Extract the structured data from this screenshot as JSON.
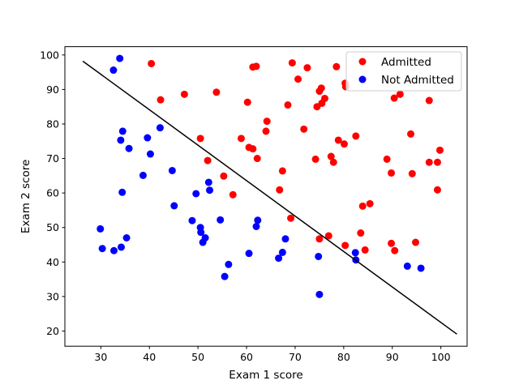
{
  "chart_data": {
    "type": "scatter",
    "title": "",
    "xlabel": "Exam 1 score",
    "ylabel": "Exam 2 score",
    "xlim": [
      22.6,
      105.4
    ],
    "ylim": [
      15.6,
      102.4
    ],
    "xticks": [
      30,
      40,
      50,
      60,
      70,
      80,
      90,
      100
    ],
    "yticks": [
      20,
      30,
      40,
      50,
      60,
      70,
      80,
      90,
      100
    ],
    "grid": false,
    "legend_position": "top-right",
    "series": [
      {
        "name": "Admitted",
        "color": "#ff0000",
        "points": [
          [
            40.4,
            97.5
          ],
          [
            62.0,
            96.7
          ],
          [
            69.4,
            97.7
          ],
          [
            72.5,
            96.3
          ],
          [
            78.5,
            96.6
          ],
          [
            61.3,
            96.5
          ],
          [
            42.3,
            87.0
          ],
          [
            47.2,
            88.6
          ],
          [
            53.8,
            89.2
          ],
          [
            60.2,
            86.3
          ],
          [
            68.5,
            85.5
          ],
          [
            70.6,
            93.0
          ],
          [
            75.0,
            89.5
          ],
          [
            75.4,
            90.4
          ],
          [
            74.5,
            85.0
          ],
          [
            75.5,
            86.0
          ],
          [
            76.1,
            87.4
          ],
          [
            80.3,
            91.8
          ],
          [
            80.4,
            90.8
          ],
          [
            90.4,
            87.5
          ],
          [
            91.6,
            88.6
          ],
          [
            97.6,
            86.8
          ],
          [
            64.2,
            80.8
          ],
          [
            64.0,
            77.9
          ],
          [
            71.8,
            78.5
          ],
          [
            50.5,
            75.8
          ],
          [
            58.9,
            75.8
          ],
          [
            60.5,
            73.2
          ],
          [
            61.3,
            72.8
          ],
          [
            62.2,
            70.0
          ],
          [
            74.2,
            69.8
          ],
          [
            77.4,
            70.6
          ],
          [
            77.9,
            68.9
          ],
          [
            78.9,
            75.3
          ],
          [
            80.1,
            74.2
          ],
          [
            82.5,
            76.5
          ],
          [
            88.9,
            69.8
          ],
          [
            89.8,
            65.8
          ],
          [
            93.8,
            77.1
          ],
          [
            94.1,
            65.6
          ],
          [
            97.6,
            68.9
          ],
          [
            99.3,
            68.9
          ],
          [
            99.8,
            72.4
          ],
          [
            99.3,
            60.9
          ],
          [
            52.0,
            69.4
          ],
          [
            55.3,
            64.9
          ],
          [
            57.2,
            59.5
          ],
          [
            66.8,
            60.9
          ],
          [
            67.4,
            66.4
          ],
          [
            69.1,
            52.7
          ],
          [
            85.4,
            56.9
          ],
          [
            83.9,
            56.2
          ],
          [
            75.0,
            46.7
          ],
          [
            76.9,
            47.6
          ],
          [
            80.3,
            44.8
          ],
          [
            83.5,
            48.4
          ],
          [
            84.4,
            43.5
          ],
          [
            89.8,
            45.4
          ],
          [
            90.5,
            43.3
          ],
          [
            94.8,
            45.7
          ]
        ]
      },
      {
        "name": "Not Admitted",
        "color": "#0000ff",
        "points": [
          [
            33.9,
            99.0
          ],
          [
            32.6,
            95.6
          ],
          [
            42.2,
            78.9
          ],
          [
            39.6,
            76.0
          ],
          [
            34.5,
            77.9
          ],
          [
            34.1,
            75.3
          ],
          [
            35.8,
            72.9
          ],
          [
            40.2,
            71.3
          ],
          [
            38.7,
            65.1
          ],
          [
            44.7,
            66.5
          ],
          [
            34.4,
            60.2
          ],
          [
            45.1,
            56.3
          ],
          [
            49.6,
            59.8
          ],
          [
            52.2,
            63.1
          ],
          [
            52.4,
            60.8
          ],
          [
            48.8,
            52.0
          ],
          [
            50.5,
            50.0
          ],
          [
            50.6,
            48.6
          ],
          [
            51.5,
            47.0
          ],
          [
            51.0,
            45.7
          ],
          [
            54.6,
            52.2
          ],
          [
            62.0,
            50.3
          ],
          [
            62.3,
            52.1
          ],
          [
            68.0,
            46.7
          ],
          [
            29.9,
            49.6
          ],
          [
            35.3,
            47.0
          ],
          [
            30.3,
            43.9
          ],
          [
            32.7,
            43.3
          ],
          [
            34.2,
            44.3
          ],
          [
            56.3,
            39.3
          ],
          [
            55.5,
            35.8
          ],
          [
            60.5,
            42.5
          ],
          [
            66.6,
            41.1
          ],
          [
            67.4,
            42.8
          ],
          [
            74.8,
            41.6
          ],
          [
            75.0,
            30.6
          ],
          [
            82.4,
            42.7
          ],
          [
            82.5,
            40.6
          ],
          [
            93.1,
            38.8
          ],
          [
            95.9,
            38.2
          ]
        ]
      }
    ],
    "boundary": {
      "name": "",
      "color": "#000000",
      "points": [
        [
          26.3,
          98.2
        ],
        [
          103.3,
          19.1
        ]
      ]
    }
  }
}
